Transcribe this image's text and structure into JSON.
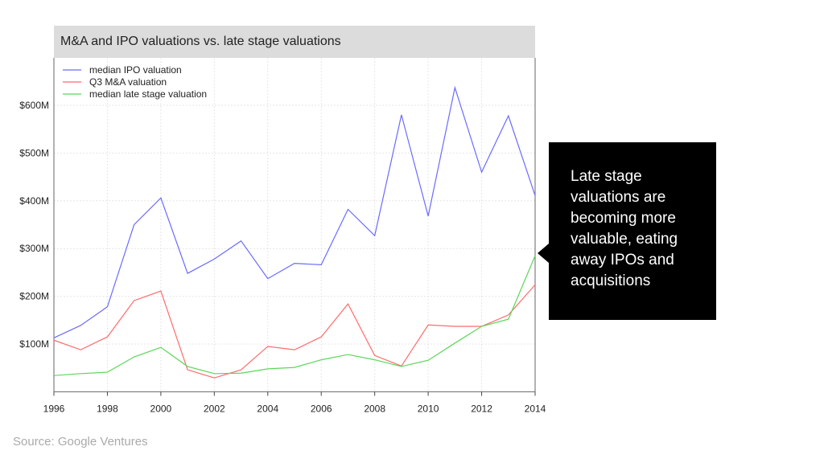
{
  "chart_data": {
    "type": "line",
    "title": "M&A and IPO valuations vs. late stage valuations",
    "xlabel": "",
    "ylabel": "",
    "x": [
      1996,
      1997,
      1998,
      1999,
      2000,
      2001,
      2002,
      2003,
      2004,
      2005,
      2006,
      2007,
      2008,
      2009,
      2010,
      2011,
      2012,
      2013,
      2014
    ],
    "xlim": [
      1996,
      2014
    ],
    "ylim": [
      0,
      665
    ],
    "x_ticks": [
      "1996",
      "1998",
      "2000",
      "2002",
      "2004",
      "2006",
      "2008",
      "2010",
      "2012",
      "2014"
    ],
    "y_ticks": [
      {
        "value": 100,
        "label": "$100M"
      },
      {
        "value": 200,
        "label": "$200M"
      },
      {
        "value": 300,
        "label": "$300M"
      },
      {
        "value": 400,
        "label": "$400M"
      },
      {
        "value": 500,
        "label": "$500M"
      },
      {
        "value": 600,
        "label": "$600M"
      }
    ],
    "grid": true,
    "legend_position": "top-left",
    "series": [
      {
        "name": "median IPO valuation",
        "color": "#6b6bff",
        "values": [
          113,
          139,
          178,
          350,
          406,
          248,
          278,
          316,
          237,
          269,
          266,
          382,
          327,
          580,
          368,
          637,
          460,
          578,
          411
        ]
      },
      {
        "name": "Q3 M&A valuation",
        "color": "#ff6b6b",
        "values": [
          108,
          88,
          115,
          191,
          211,
          46,
          29,
          46,
          95,
          88,
          115,
          184,
          76,
          54,
          140,
          137,
          137,
          161,
          224
        ]
      },
      {
        "name": "median late stage valuation",
        "color": "#5bd65b",
        "values": [
          34,
          38,
          41,
          73,
          93,
          53,
          38,
          39,
          48,
          51,
          67,
          78,
          67,
          53,
          66,
          102,
          137,
          152,
          285
        ]
      }
    ]
  },
  "callout": "Late stage valuations are becoming more valuable, eating away IPOs and acquisitions",
  "source": "Source: Google Ventures"
}
